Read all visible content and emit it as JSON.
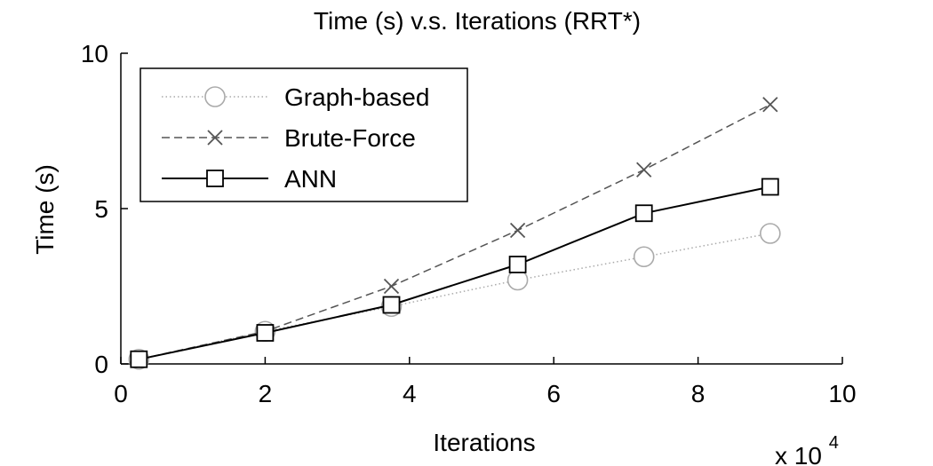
{
  "chart_data": {
    "type": "line",
    "title": "Time (s) v.s. Iterations (RRT*)",
    "xlabel": "Iterations",
    "ylabel": "Time (s)",
    "x_multiplier_label": "x 10",
    "x_multiplier_exponent": "4",
    "xlim": [
      0,
      10
    ],
    "ylim": [
      0,
      10
    ],
    "xticks": [
      "0",
      "2",
      "4",
      "6",
      "8",
      "10"
    ],
    "yticks": [
      "0",
      "5",
      "10"
    ],
    "grid": false,
    "legend_position": "top-left",
    "series": [
      {
        "name": "Graph-based",
        "marker": "circle",
        "line_style": "dotted",
        "color": "#aaaaaa",
        "x": [
          0.25,
          2.0,
          3.75,
          5.5,
          7.25,
          9.0
        ],
        "y": [
          0.15,
          1.05,
          1.85,
          2.7,
          3.45,
          4.2
        ]
      },
      {
        "name": "Brute-Force",
        "marker": "x",
        "line_style": "dashed",
        "color": "#555555",
        "x": [
          0.25,
          2.0,
          3.75,
          5.5,
          7.25,
          9.0
        ],
        "y": [
          0.15,
          1.05,
          2.5,
          4.3,
          6.25,
          8.35
        ]
      },
      {
        "name": "ANN",
        "marker": "square",
        "line_style": "solid",
        "color": "#000000",
        "x": [
          0.25,
          2.0,
          3.75,
          5.5,
          7.25,
          9.0
        ],
        "y": [
          0.15,
          1.0,
          1.9,
          3.2,
          4.85,
          5.7
        ]
      }
    ]
  }
}
